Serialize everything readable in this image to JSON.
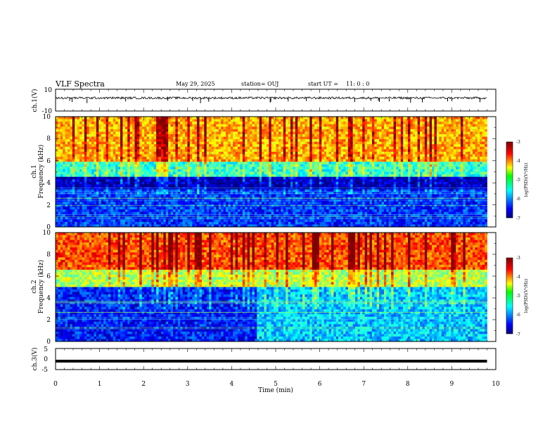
{
  "header": {
    "title": "VLF Spectra",
    "date": "May 29, 2025",
    "station": "station= OUJ",
    "start_label": "start  UT =",
    "start_time": "11: 0  : 0"
  },
  "chart_data": [
    {
      "type": "line",
      "id": "ch1-waveform",
      "ylabel": "ch.1(V)",
      "xlim": [
        0,
        10
      ],
      "ylim": [
        -10,
        10
      ],
      "yticks": [
        "10",
        "-10"
      ],
      "series": [
        {
          "baseline": 2,
          "noise_amplitude": 1,
          "spike_amplitude": -4,
          "x_end": 9.8
        }
      ]
    },
    {
      "type": "heatmap",
      "id": "ch1-spectrogram",
      "ylabel": "Frequency  (kHz)",
      "ylabel_channel": "ch.1",
      "xlim": [
        0,
        9.8
      ],
      "ylim": [
        0,
        10
      ],
      "yticks": [
        "0",
        "2",
        "4",
        "6",
        "8",
        "10"
      ],
      "colorbar": {
        "label": "log(PSD)(V²/Hz)",
        "range": [
          -7,
          -3
        ],
        "ticks": [
          "-3",
          "-4",
          "-5",
          "-6",
          "-7"
        ]
      },
      "bands_khz": [
        {
          "from": 6.0,
          "to": 10.0,
          "level": -4.2
        },
        {
          "from": 4.5,
          "to": 6.0,
          "level": -5.3
        },
        {
          "from": 3.5,
          "to": 4.5,
          "level": -6.8
        },
        {
          "from": 0.0,
          "to": 3.5,
          "level": -6.3
        }
      ]
    },
    {
      "type": "heatmap",
      "id": "ch2-spectrogram",
      "ylabel": "Frequency  (kHz)",
      "ylabel_channel": "ch.2",
      "xlim": [
        0,
        9.8
      ],
      "ylim": [
        0,
        10
      ],
      "yticks": [
        "0",
        "2",
        "4",
        "6",
        "8",
        "10"
      ],
      "colorbar": {
        "label": "log(PSD)(V²/Hz)",
        "range": [
          -7,
          -3
        ],
        "ticks": [
          "-3",
          "-4",
          "-5",
          "-6",
          "-7"
        ]
      },
      "bands_khz": [
        {
          "from": 6.5,
          "to": 10.0,
          "level": -3.8
        },
        {
          "from": 5.0,
          "to": 6.5,
          "level": -4.8
        },
        {
          "from": 0.0,
          "to": 5.0,
          "level": -6.4
        }
      ],
      "change_at_min": 4.6,
      "after_change_level": -5.7
    },
    {
      "type": "line",
      "id": "ch3-waveform",
      "ylabel": "ch.3(V)",
      "xlim": [
        0,
        10
      ],
      "ylim": [
        -5,
        5
      ],
      "yticks": [
        "5",
        "0",
        "-5"
      ],
      "series": [
        {
          "value": -1,
          "x_end": 9.8
        }
      ]
    }
  ],
  "xaxis": {
    "label": "Time  (min)",
    "ticks": [
      "0",
      "1",
      "2",
      "3",
      "4",
      "5",
      "6",
      "7",
      "8",
      "9",
      "10"
    ]
  }
}
